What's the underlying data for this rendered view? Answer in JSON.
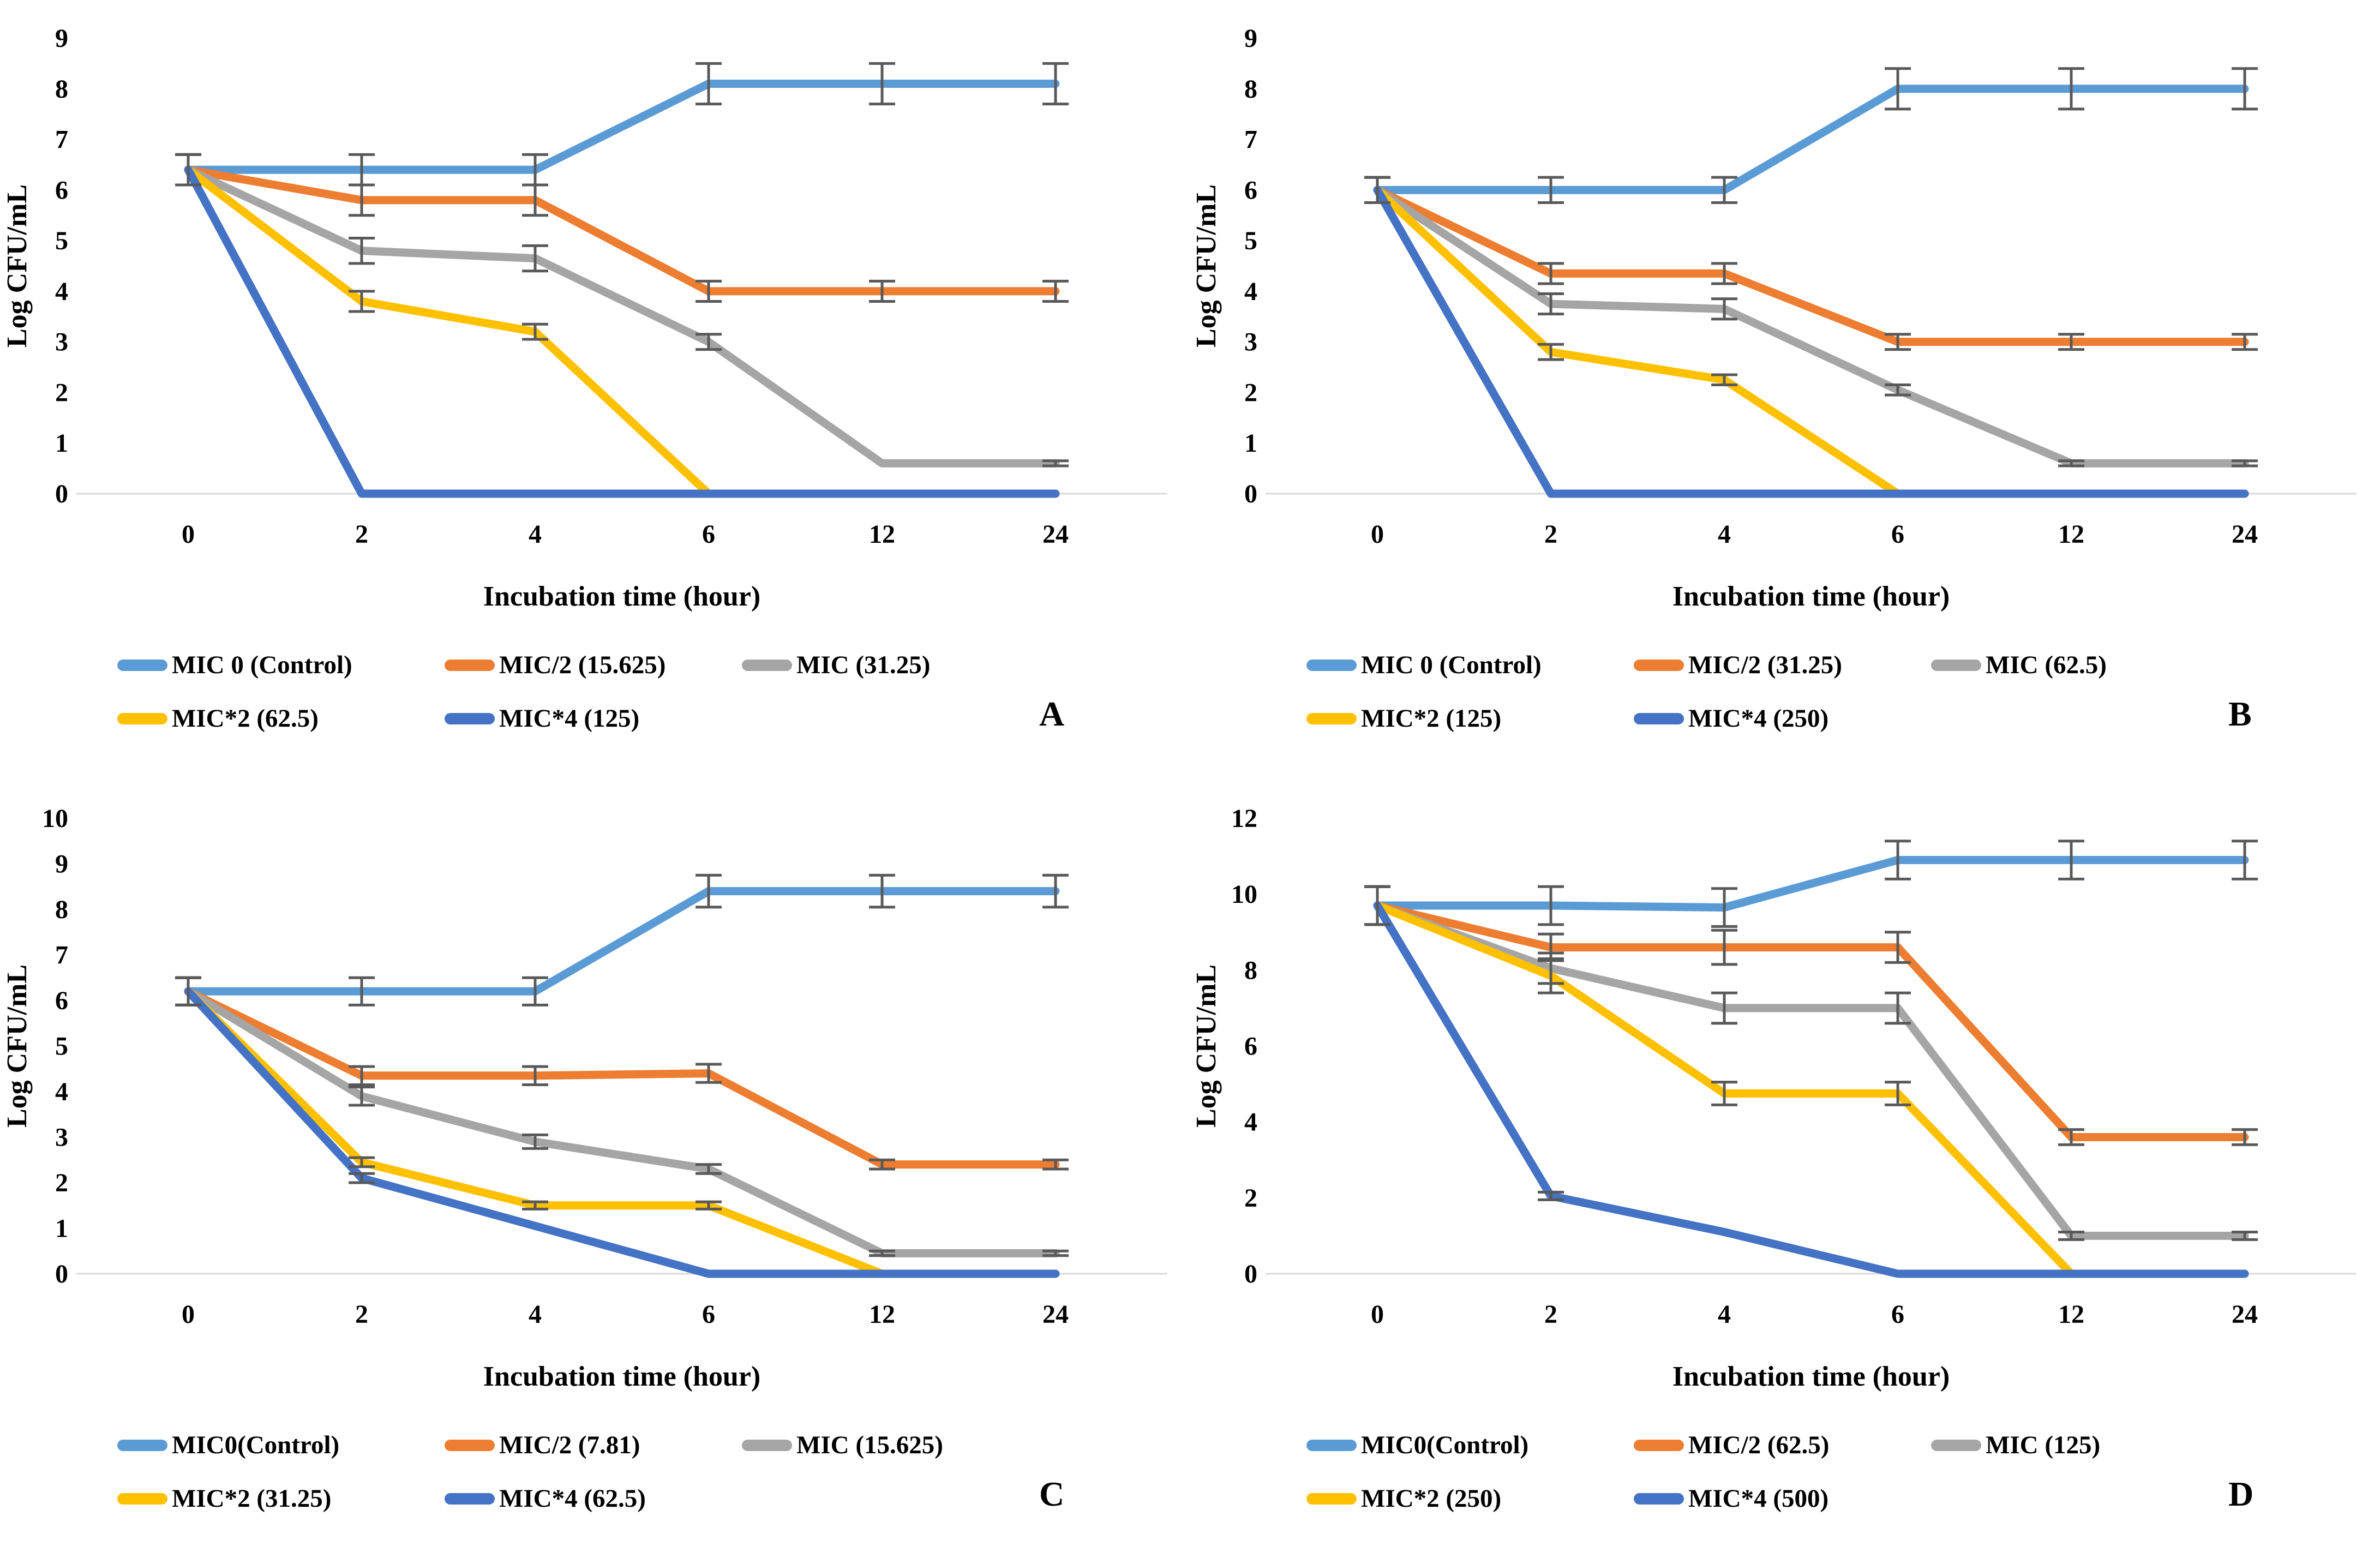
{
  "figure": {
    "background": "#ffffff",
    "colors": {
      "axis_line": "#D9D9D9",
      "error_bar": "#595959",
      "control_blue": "#5B9BD5",
      "orange": "#ED7D31",
      "gray": "#A5A5A5",
      "yellow": "#FFC000",
      "dark_blue": "#4472C4"
    }
  },
  "chart_data": [
    {
      "type": "line",
      "panel_label": "A",
      "xlabel": "Incubation time (hour)",
      "ylabel": "Log CFU/mL",
      "x_categories": [
        "0",
        "2",
        "4",
        "6",
        "12",
        "24"
      ],
      "ylim": [
        0,
        9
      ],
      "ytick_step": 1,
      "grid": false,
      "legend_position": "bottom",
      "series": [
        {
          "name": "MIC 0 (Control)",
          "color": "#5B9BD5",
          "values": [
            6.4,
            6.4,
            6.4,
            8.1,
            8.1,
            8.1
          ],
          "errors": [
            0.3,
            0.3,
            0.3,
            0.4,
            0.4,
            0.4
          ]
        },
        {
          "name": "MIC/2 (15.625)",
          "color": "#ED7D31",
          "values": [
            6.4,
            5.8,
            5.8,
            4.0,
            4.0,
            4.0
          ],
          "errors": [
            0.3,
            0.3,
            0.3,
            0.2,
            0.2,
            0.2
          ]
        },
        {
          "name": "MIC (31.25)",
          "color": "#A5A5A5",
          "values": [
            6.4,
            4.8,
            4.65,
            3.0,
            0.6,
            0.6
          ],
          "errors": [
            0.3,
            0.25,
            0.25,
            0.15,
            0,
            0.05
          ]
        },
        {
          "name": "MIC*2 (62.5)",
          "color": "#FFC000",
          "values": [
            6.4,
            3.8,
            3.2,
            0,
            0,
            0
          ],
          "errors": [
            0.3,
            0.2,
            0.15,
            0,
            0,
            0
          ]
        },
        {
          "name": "MIC*4 (125)",
          "color": "#4472C4",
          "values": [
            6.4,
            0,
            0,
            0,
            0,
            0
          ],
          "errors": [
            0.3,
            0,
            0,
            0,
            0,
            0
          ]
        }
      ]
    },
    {
      "type": "line",
      "panel_label": "B",
      "xlabel": "Incubation time (hour)",
      "ylabel": "Log CFU/mL",
      "x_categories": [
        "0",
        "2",
        "4",
        "6",
        "12",
        "24"
      ],
      "ylim": [
        0,
        9
      ],
      "ytick_step": 1,
      "grid": false,
      "legend_position": "bottom",
      "series": [
        {
          "name": "MIC 0 (Control)",
          "color": "#5B9BD5",
          "values": [
            6.0,
            6.0,
            6.0,
            8.0,
            8.0,
            8.0
          ],
          "errors": [
            0.25,
            0.25,
            0.25,
            0.4,
            0.4,
            0.4
          ]
        },
        {
          "name": "MIC/2 (31.25)",
          "color": "#ED7D31",
          "values": [
            6.0,
            4.35,
            4.35,
            3.0,
            3.0,
            3.0
          ],
          "errors": [
            0.25,
            0.2,
            0.2,
            0.15,
            0.15,
            0.15
          ]
        },
        {
          "name": "MIC (62.5)",
          "color": "#A5A5A5",
          "values": [
            6.0,
            3.75,
            3.65,
            2.05,
            0.6,
            0.6
          ],
          "errors": [
            0.25,
            0.2,
            0.2,
            0.1,
            0.05,
            0.05
          ]
        },
        {
          "name": "MIC*2 (125)",
          "color": "#FFC000",
          "values": [
            6.0,
            2.8,
            2.25,
            0,
            0,
            0
          ],
          "errors": [
            0.25,
            0.15,
            0.1,
            0,
            0,
            0
          ]
        },
        {
          "name": "MIC*4 (250)",
          "color": "#4472C4",
          "values": [
            6.0,
            0,
            0,
            0,
            0,
            0
          ],
          "errors": [
            0.25,
            0,
            0,
            0,
            0,
            0
          ]
        }
      ]
    },
    {
      "type": "line",
      "panel_label": "C",
      "xlabel": "Incubation time (hour)",
      "ylabel": "Log CFU/mL",
      "x_categories": [
        "0",
        "2",
        "4",
        "6",
        "12",
        "24"
      ],
      "ylim": [
        0,
        10
      ],
      "ytick_step": 1,
      "grid": false,
      "legend_position": "bottom",
      "series": [
        {
          "name": "MIC0(Control)",
          "color": "#5B9BD5",
          "values": [
            6.2,
            6.2,
            6.2,
            8.4,
            8.4,
            8.4
          ],
          "errors": [
            0.3,
            0.3,
            0.3,
            0.35,
            0.35,
            0.35
          ]
        },
        {
          "name": "MIC/2 (7.81)",
          "color": "#ED7D31",
          "values": [
            6.2,
            4.35,
            4.35,
            4.4,
            2.4,
            2.4
          ],
          "errors": [
            0.3,
            0.2,
            0.2,
            0.2,
            0.1,
            0.1
          ]
        },
        {
          "name": "MIC (15.625)",
          "color": "#A5A5A5",
          "values": [
            6.2,
            3.9,
            2.9,
            2.3,
            0.45,
            0.45
          ],
          "errors": [
            0.3,
            0.2,
            0.15,
            0.1,
            0.05,
            0.05
          ]
        },
        {
          "name": "MIC*2 (31.25)",
          "color": "#FFC000",
          "values": [
            6.2,
            2.45,
            1.5,
            1.5,
            0,
            0
          ],
          "errors": [
            0.3,
            0.1,
            0.08,
            0.08,
            0,
            0
          ]
        },
        {
          "name": "MIC*4 (62.5)",
          "color": "#4472C4",
          "values": [
            6.2,
            2.1,
            1.05,
            0,
            0,
            0
          ],
          "errors": [
            0.3,
            0.1,
            0,
            0,
            0,
            0
          ]
        }
      ]
    },
    {
      "type": "line",
      "panel_label": "D",
      "xlabel": "Incubation time (hour)",
      "ylabel": "Log CFU/mL",
      "x_categories": [
        "0",
        "2",
        "4",
        "6",
        "12",
        "24"
      ],
      "ylim": [
        0,
        12
      ],
      "ytick_step": 2,
      "grid": false,
      "legend_position": "bottom",
      "series": [
        {
          "name": "MIC0(Control)",
          "color": "#5B9BD5",
          "values": [
            9.7,
            9.7,
            9.65,
            10.9,
            10.9,
            10.9
          ],
          "errors": [
            0.5,
            0.5,
            0.5,
            0.5,
            0.5,
            0.5
          ]
        },
        {
          "name": "MIC/2 (62.5)",
          "color": "#ED7D31",
          "values": [
            9.7,
            8.6,
            8.6,
            8.6,
            3.6,
            3.6
          ],
          "errors": [
            0.5,
            0.35,
            0.45,
            0.4,
            0.2,
            0.2
          ]
        },
        {
          "name": "MIC (125)",
          "color": "#A5A5A5",
          "values": [
            9.7,
            8.05,
            7.0,
            7.0,
            1.0,
            1.0
          ],
          "errors": [
            0.5,
            0.4,
            0.4,
            0.4,
            0.1,
            0.1
          ]
        },
        {
          "name": "MIC*2 (250)",
          "color": "#FFC000",
          "values": [
            9.7,
            7.85,
            4.75,
            4.75,
            0,
            0
          ],
          "errors": [
            0.5,
            0.45,
            0.3,
            0.3,
            0,
            0
          ]
        },
        {
          "name": "MIC*4 (500)",
          "color": "#4472C4",
          "values": [
            9.7,
            2.05,
            1.1,
            0,
            0,
            0
          ],
          "errors": [
            0.5,
            0.1,
            0,
            0,
            0,
            0
          ]
        }
      ]
    }
  ]
}
